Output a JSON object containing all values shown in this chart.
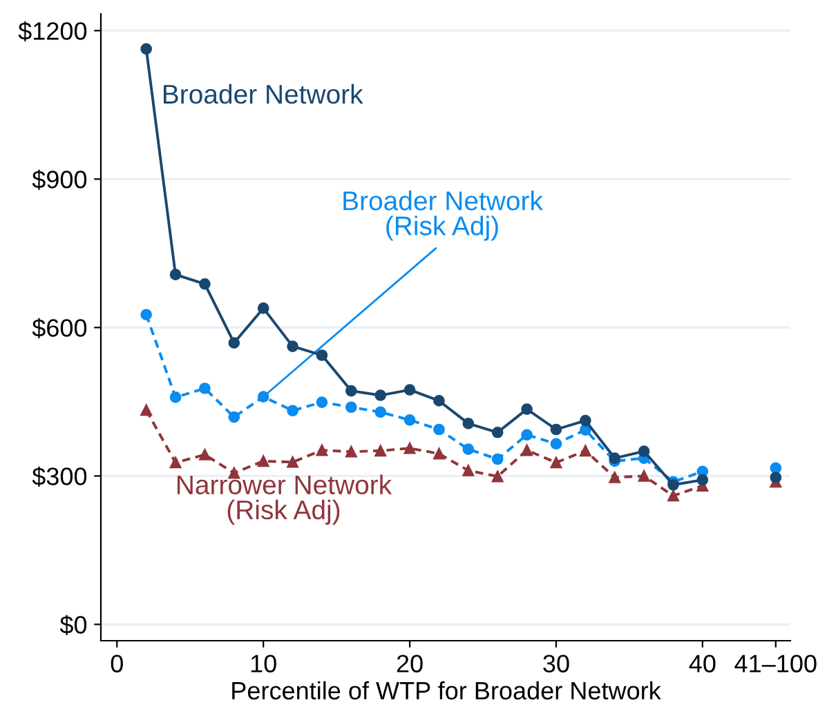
{
  "chart_data": {
    "type": "line",
    "xlabel": "Percentile of WTP for Broader Network",
    "x": [
      2,
      4,
      6,
      8,
      10,
      12,
      14,
      16,
      18,
      20,
      22,
      24,
      26,
      28,
      30,
      32,
      34,
      36,
      38,
      40,
      42.5,
      45
    ],
    "series": [
      {
        "name": "Broader Network",
        "color": "#1a476f",
        "marker": "circle",
        "line_style": "solid",
        "values": [
          1163,
          707,
          688,
          569,
          639,
          562,
          544,
          472,
          463,
          474,
          452,
          406,
          388,
          435,
          394,
          412,
          336,
          350,
          282,
          292,
          null,
          297
        ]
      },
      {
        "name": "Broader Network\n(Risk Adj)",
        "color": "#0a8cf0",
        "marker": "circle",
        "line_style": "dashed",
        "values": [
          626,
          459,
          477,
          419,
          460,
          432,
          449,
          439,
          429,
          413,
          394,
          354,
          334,
          383,
          365,
          393,
          330,
          336,
          288,
          309,
          null,
          316
        ]
      },
      {
        "name": "Narrower Network\n(Risk Adj)",
        "color": "#90353b",
        "marker": "triangle",
        "line_style": "dashed",
        "values": [
          433,
          327,
          343,
          306,
          330,
          328,
          352,
          349,
          351,
          356,
          345,
          311,
          299,
          352,
          327,
          351,
          297,
          300,
          260,
          280,
          null,
          288
        ]
      }
    ],
    "xlim": [
      -1.1,
      46
    ],
    "xticks": [
      0,
      10,
      20,
      30,
      40,
      {
        "value": 45,
        "label": "41–100"
      }
    ],
    "ylim": [
      -33,
      1234
    ],
    "yticks": [
      {
        "value": 0,
        "label": "$0"
      },
      {
        "value": 300,
        "label": "$300"
      },
      {
        "value": 600,
        "label": "$600"
      },
      {
        "value": 900,
        "label": "$900"
      },
      {
        "value": 1200,
        "label": "$1200"
      }
    ],
    "grid": "y",
    "legend": false
  }
}
